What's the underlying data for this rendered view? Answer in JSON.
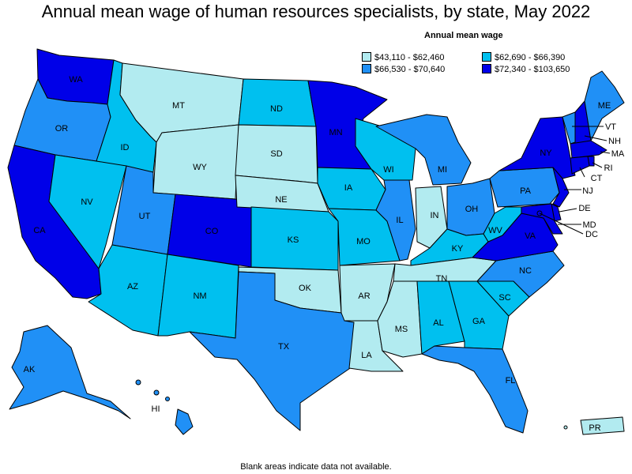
{
  "title": "Annual mean wage of human resources specialists, by state, May 2022",
  "legend": {
    "title": "Annual mean wage",
    "items": [
      {
        "label": "$43,110 - $62,460",
        "color": "#b2ebf0"
      },
      {
        "label": "$62,690 - $66,390",
        "color": "#00c0ef"
      },
      {
        "label": "$66,530 - $70,640",
        "color": "#2090f6"
      },
      {
        "label": "$72,340 - $103,650",
        "color": "#0000e8"
      }
    ]
  },
  "footnote": "Blank areas indicate data not available.",
  "states": [
    {
      "abbr": "WA",
      "tier": 3
    },
    {
      "abbr": "OR",
      "tier": 2
    },
    {
      "abbr": "CA",
      "tier": 3
    },
    {
      "abbr": "ID",
      "tier": 1
    },
    {
      "abbr": "NV",
      "tier": 1
    },
    {
      "abbr": "MT",
      "tier": 0
    },
    {
      "abbr": "WY",
      "tier": 0
    },
    {
      "abbr": "UT",
      "tier": 2
    },
    {
      "abbr": "AZ",
      "tier": 1
    },
    {
      "abbr": "CO",
      "tier": 3
    },
    {
      "abbr": "NM",
      "tier": 1
    },
    {
      "abbr": "ND",
      "tier": 1
    },
    {
      "abbr": "SD",
      "tier": 0
    },
    {
      "abbr": "NE",
      "tier": 0
    },
    {
      "abbr": "KS",
      "tier": 1
    },
    {
      "abbr": "OK",
      "tier": 0
    },
    {
      "abbr": "TX",
      "tier": 2
    },
    {
      "abbr": "MN",
      "tier": 3
    },
    {
      "abbr": "IA",
      "tier": 1
    },
    {
      "abbr": "MO",
      "tier": 1
    },
    {
      "abbr": "AR",
      "tier": 0
    },
    {
      "abbr": "LA",
      "tier": 0
    },
    {
      "abbr": "WI",
      "tier": 1
    },
    {
      "abbr": "IL",
      "tier": 2
    },
    {
      "abbr": "MS",
      "tier": 0
    },
    {
      "abbr": "MI",
      "tier": 2
    },
    {
      "abbr": "IN",
      "tier": 0
    },
    {
      "abbr": "KY",
      "tier": 1
    },
    {
      "abbr": "TN",
      "tier": 0
    },
    {
      "abbr": "AL",
      "tier": 1
    },
    {
      "abbr": "OH",
      "tier": 2
    },
    {
      "abbr": "GA",
      "tier": 1
    },
    {
      "abbr": "FL",
      "tier": 2
    },
    {
      "abbr": "SC",
      "tier": 1
    },
    {
      "abbr": "NC",
      "tier": 2
    },
    {
      "abbr": "VA",
      "tier": 3
    },
    {
      "abbr": "WV",
      "tier": 1
    },
    {
      "abbr": "PA",
      "tier": 2
    },
    {
      "abbr": "NY",
      "tier": 3
    },
    {
      "abbr": "VT",
      "tier": 2
    },
    {
      "abbr": "NH",
      "tier": 3
    },
    {
      "abbr": "ME",
      "tier": 2
    },
    {
      "abbr": "MA",
      "tier": 3
    },
    {
      "abbr": "RI",
      "tier": 3
    },
    {
      "abbr": "CT",
      "tier": 3
    },
    {
      "abbr": "NJ",
      "tier": 3
    },
    {
      "abbr": "DE",
      "tier": 3
    },
    {
      "abbr": "MD",
      "tier": 3
    },
    {
      "abbr": "DC",
      "tier": 3
    },
    {
      "abbr": "AK",
      "tier": 2
    },
    {
      "abbr": "HI",
      "tier": 2
    },
    {
      "abbr": "PR",
      "tier": 0
    }
  ]
}
